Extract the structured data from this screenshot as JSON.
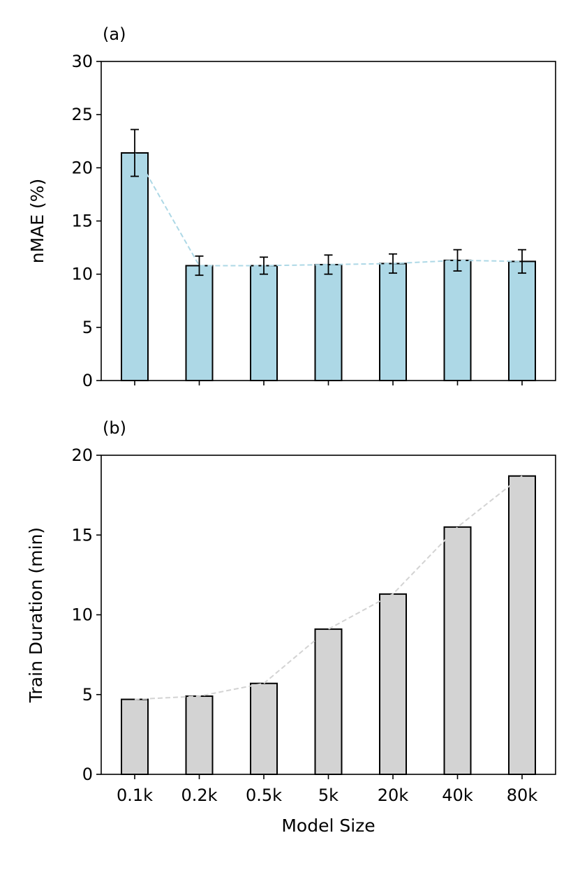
{
  "chart_data": [
    {
      "type": "bar",
      "panel_label": "(a)",
      "categories": [
        "0.1k",
        "0.2k",
        "0.5k",
        "5k",
        "20k",
        "40k",
        "80k"
      ],
      "values": [
        21.4,
        10.8,
        10.8,
        10.9,
        11.0,
        11.3,
        11.2
      ],
      "error_bars": [
        2.2,
        0.9,
        0.8,
        0.9,
        0.9,
        1.0,
        1.1
      ],
      "trend_line": true,
      "xlabel": "",
      "ylabel": "nMAE (%)",
      "ylim": [
        0,
        30
      ],
      "yticks": [
        0,
        5,
        10,
        15,
        20,
        25,
        30
      ],
      "show_xtick_labels": false,
      "grid": false,
      "bar_color": "#add8e6",
      "line_color": "#add8e6"
    },
    {
      "type": "bar",
      "panel_label": "(b)",
      "categories": [
        "0.1k",
        "0.2k",
        "0.5k",
        "5k",
        "20k",
        "40k",
        "80k"
      ],
      "values": [
        4.7,
        4.9,
        5.7,
        9.1,
        11.3,
        15.5,
        18.7
      ],
      "trend_line": true,
      "xlabel": "Model Size",
      "ylabel": "Train Duration (min)",
      "ylim": [
        0,
        20
      ],
      "yticks": [
        0,
        5,
        10,
        15,
        20
      ],
      "show_xtick_labels": true,
      "grid": false,
      "bar_color": "#d3d3d3",
      "line_color": "#d3d3d3"
    }
  ]
}
